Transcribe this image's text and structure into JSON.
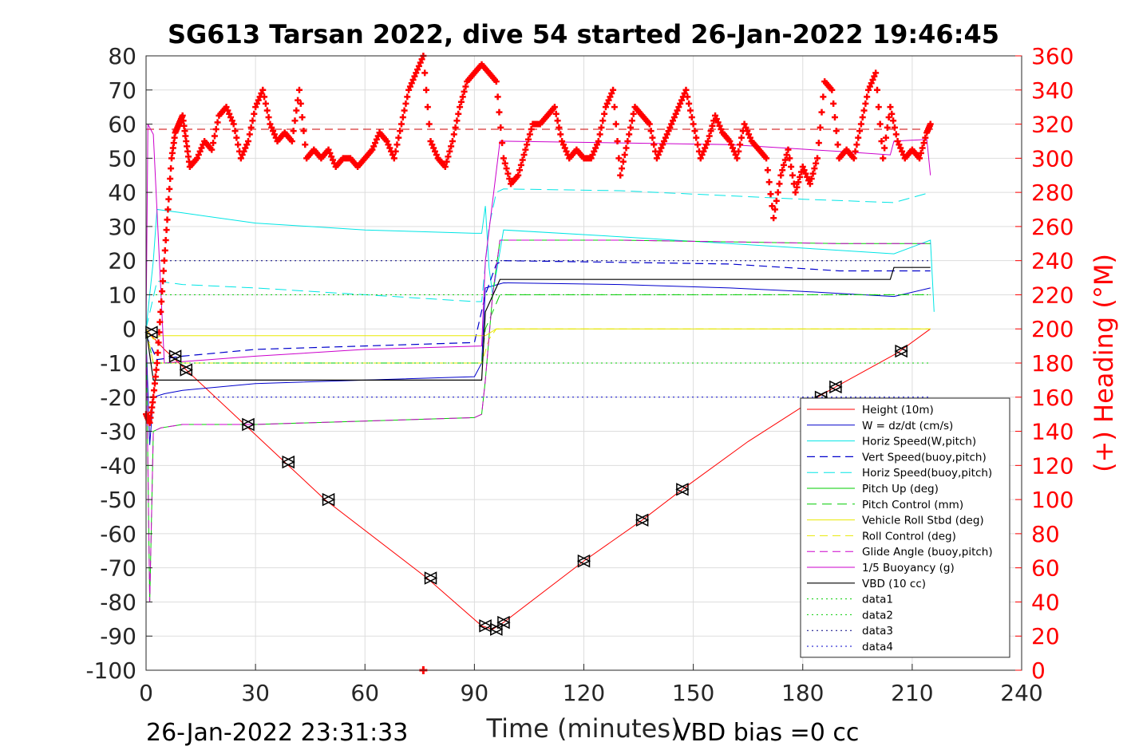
{
  "chart_data": {
    "type": "line",
    "title": "SG613 Tarsan 2022, dive 54 started 26-Jan-2022 19:46:45",
    "xlabel": "Time (minutes)",
    "ylabel_right": "(+) Heading (°M)",
    "footer_left": "26-Jan-2022 23:31:33",
    "footer_right": "VBD bias =0 cc",
    "xlim": [
      0,
      240
    ],
    "ylim": [
      -100,
      80
    ],
    "ylim_right": [
      0,
      360
    ],
    "xticks": [
      "0",
      "30",
      "60",
      "90",
      "120",
      "150",
      "180",
      "210",
      "240"
    ],
    "yticks": [
      "80",
      "70",
      "60",
      "50",
      "40",
      "30",
      "20",
      "10",
      "0",
      "-10",
      "-20",
      "-30",
      "-40",
      "-50",
      "-60",
      "-70",
      "-80",
      "-90",
      "-100"
    ],
    "yticks_right": [
      "360",
      "340",
      "320",
      "300",
      "280",
      "260",
      "240",
      "220",
      "200",
      "180",
      "160",
      "140",
      "120",
      "100",
      "80",
      "60",
      "40",
      "20",
      "0"
    ],
    "grid": true,
    "legend_position": "bottom-right",
    "colors": {
      "right_axis": "#ff0000",
      "axes": "#262626",
      "grid": "#dddddd"
    },
    "series": [
      {
        "name": "Height (10m)",
        "color": "#ff0000",
        "dash": "",
        "width": 1,
        "x": [
          0,
          1.5,
          5,
          10,
          27,
          38,
          49,
          77,
          92,
          95,
          98,
          120,
          136,
          147,
          165,
          184,
          189,
          206,
          215
        ],
        "y": [
          0,
          -2,
          -6,
          -11,
          -28,
          -39,
          -50,
          -73,
          -87,
          -88,
          -86,
          -68,
          -56,
          -47,
          -33,
          -20,
          -17,
          -7,
          0
        ]
      },
      {
        "name": "W = dz/dt (cm/s)",
        "color": "#0000cc",
        "dash": "",
        "width": 1,
        "x": [
          0,
          1,
          2,
          5,
          10,
          30,
          60,
          90,
          92,
          93,
          98,
          130,
          160,
          180,
          205,
          215
        ],
        "y": [
          -2,
          -34,
          -20,
          -19,
          -18,
          -16,
          -15,
          -14,
          -10,
          12,
          13.5,
          13,
          12,
          11,
          9.5,
          12
        ]
      },
      {
        "name": "Horiz Speed(W,pitch)",
        "color": "#00e5e5",
        "dash": "",
        "width": 1,
        "x": [
          0,
          2,
          3,
          10,
          30,
          60,
          90,
          92,
          93,
          94,
          95,
          98,
          130,
          160,
          190,
          205,
          215,
          216
        ],
        "y": [
          0,
          20,
          35,
          34,
          31,
          29,
          28,
          28,
          36,
          18,
          10,
          29,
          27,
          25,
          23,
          22,
          26,
          5
        ]
      },
      {
        "name": "Vert Speed(buoy,pitch)",
        "color": "#0000cc",
        "dash": "10,6",
        "width": 1.2,
        "x": [
          0,
          3,
          10,
          30,
          60,
          90,
          93,
          96,
          98,
          130,
          160,
          190,
          215
        ],
        "y": [
          -2,
          -9,
          -8,
          -6,
          -5,
          -4,
          10,
          19,
          20,
          19.5,
          19,
          17,
          17
        ]
      },
      {
        "name": "Horiz Speed(buoy,pitch)",
        "color": "#00e5e5",
        "dash": "14,7",
        "width": 1,
        "x": [
          0,
          3,
          10,
          30,
          60,
          90,
          92,
          94,
          96,
          98,
          130,
          160,
          180,
          205,
          215
        ],
        "y": [
          0,
          14,
          13,
          12,
          10,
          8,
          8,
          30,
          40,
          41,
          40.5,
          39,
          38,
          37,
          40
        ]
      },
      {
        "name": "Pitch Up (deg)",
        "color": "#00cc00",
        "dash": "",
        "width": 1,
        "x": [
          0,
          1,
          2,
          4,
          10,
          30,
          60,
          90,
          92,
          93,
          95,
          97,
          130,
          160,
          190,
          215
        ],
        "y": [
          0,
          -80,
          -30,
          -29,
          -28,
          -28,
          -27,
          -26,
          -25,
          -15,
          10,
          26,
          26,
          25.5,
          25,
          25
        ]
      },
      {
        "name": "Pitch Control (mm)",
        "color": "#00cc00",
        "dash": "12,7",
        "width": 1,
        "x": [
          0,
          2,
          4,
          92,
          93,
          97,
          215
        ],
        "y": [
          0,
          -10,
          -10,
          -10,
          0,
          10,
          10
        ]
      },
      {
        "name": "Vehicle Roll Stbd (deg)",
        "color": "#e8e800",
        "dash": "",
        "width": 1,
        "x": [
          0,
          2,
          4,
          10,
          30,
          60,
          92,
          93,
          96,
          100,
          130,
          160,
          190,
          215
        ],
        "y": [
          0,
          -3,
          -2,
          -2,
          -2,
          -2,
          -2,
          -2,
          0,
          0,
          0,
          0,
          0,
          0
        ]
      },
      {
        "name": "Roll Control (deg)",
        "color": "#e8e800",
        "dash": "10,6",
        "width": 1,
        "x": [
          0,
          2,
          4,
          92,
          94,
          96,
          215
        ],
        "y": [
          0,
          -10,
          -10,
          -10,
          -3,
          0,
          0
        ]
      },
      {
        "name": "Glide Angle (buoy,pitch)",
        "color": "#cc00cc",
        "dash": "10,6",
        "width": 1,
        "x": [
          0,
          1,
          2,
          4,
          10,
          30,
          60,
          90,
          92,
          93,
          95,
          97,
          130,
          160,
          190,
          215
        ],
        "y": [
          0,
          -80,
          -30,
          -29,
          -28,
          -28,
          -27,
          -26,
          -25,
          -15,
          10,
          26,
          26,
          25.5,
          25,
          25
        ]
      },
      {
        "name": "1/5 Buoyancy (g)",
        "color": "#cc00cc",
        "dash": "",
        "width": 1,
        "x": [
          0,
          0.5,
          2,
          5,
          30,
          60,
          92,
          93,
          97,
          130,
          160,
          190,
          204,
          205,
          214,
          215
        ],
        "y": [
          0,
          60,
          57,
          -10,
          -8,
          -6,
          -5,
          20,
          55,
          54.5,
          54,
          52,
          51,
          55,
          55.5,
          45
        ]
      },
      {
        "name": "VBD (10 cc)",
        "color": "#000000",
        "dash": "",
        "width": 1.2,
        "x": [
          0,
          2,
          4,
          10,
          30,
          60,
          92,
          93,
          97,
          130,
          160,
          190,
          204,
          205,
          215
        ],
        "y": [
          0,
          -15,
          -15,
          -15,
          -15,
          -15,
          -15,
          5,
          14.5,
          14.5,
          14.5,
          14.5,
          14.5,
          18,
          18
        ]
      },
      {
        "name": "data1",
        "color": "#00cc00",
        "dash": "2,4",
        "width": 1,
        "x": [
          0,
          215
        ],
        "y": [
          -10,
          -10
        ]
      },
      {
        "name": "data2",
        "color": "#00cc00",
        "dash": "2,4",
        "width": 1,
        "x": [
          0,
          215
        ],
        "y": [
          10,
          10
        ]
      },
      {
        "name": "data3",
        "color": "#000080",
        "dash": "2,4",
        "width": 1,
        "x": [
          0,
          215
        ],
        "y": [
          20,
          20
        ]
      },
      {
        "name": "data4",
        "color": "#0000cc",
        "dash": "2,4",
        "width": 1,
        "x": [
          0,
          215
        ],
        "y": [
          -20,
          -20
        ]
      }
    ],
    "heading": {
      "name": "(+) Heading (°M)",
      "color": "#ff0000",
      "marker": "+",
      "axis": "right",
      "x": [
        0,
        1,
        2,
        3,
        4,
        5,
        6,
        7,
        8,
        9,
        10,
        11,
        12,
        14,
        16,
        18,
        20,
        22,
        24,
        26,
        28,
        30,
        32,
        34,
        36,
        38,
        40,
        42,
        44,
        46,
        48,
        50,
        52,
        54,
        56,
        58,
        60,
        62,
        64,
        66,
        68,
        70,
        72,
        74,
        76,
        78,
        80,
        82,
        84,
        86,
        88,
        90,
        92,
        94,
        96,
        98,
        100,
        102,
        104,
        106,
        108,
        110,
        112,
        114,
        116,
        118,
        120,
        122,
        124,
        126,
        128,
        130,
        132,
        134,
        136,
        138,
        140,
        142,
        144,
        146,
        148,
        150,
        152,
        154,
        156,
        158,
        160,
        162,
        164,
        166,
        168,
        170,
        172,
        174,
        176,
        178,
        180,
        182,
        184,
        186,
        188,
        190,
        192,
        194,
        196,
        198,
        200,
        202,
        204,
        206,
        208,
        210,
        212,
        214,
        215
      ],
      "y": [
        150,
        145,
        160,
        180,
        210,
        240,
        270,
        300,
        315,
        320,
        325,
        310,
        295,
        300,
        310,
        305,
        325,
        330,
        320,
        300,
        310,
        330,
        340,
        320,
        310,
        315,
        310,
        340,
        300,
        305,
        300,
        305,
        295,
        300,
        300,
        295,
        300,
        305,
        315,
        310,
        300,
        320,
        340,
        350,
        360,
        310,
        300,
        295,
        310,
        330,
        345,
        350,
        355,
        350,
        345,
        300,
        285,
        290,
        305,
        320,
        320,
        325,
        330,
        310,
        300,
        305,
        300,
        300,
        310,
        330,
        340,
        290,
        310,
        330,
        325,
        320,
        300,
        310,
        320,
        330,
        340,
        320,
        300,
        310,
        325,
        315,
        310,
        300,
        320,
        310,
        305,
        300,
        265,
        290,
        305,
        280,
        295,
        285,
        300,
        345,
        340,
        300,
        305,
        300,
        320,
        340,
        350,
        300,
        330,
        310,
        300,
        305,
        300,
        315,
        320
      ]
    },
    "reference_lines": [
      {
        "axis": "right",
        "value": 317,
        "color": "#cc0000",
        "dash": "10,6"
      }
    ],
    "markers": {
      "x": [
        1.5,
        8,
        11,
        28,
        39,
        50,
        78,
        93,
        96,
        98,
        120,
        136,
        147,
        185,
        189,
        207
      ],
      "y": [
        -1,
        -8,
        -12,
        -28,
        -39,
        -50,
        -73,
        -87,
        -88,
        -86,
        -68,
        -56,
        -47,
        -20,
        -17,
        -6.5
      ]
    },
    "heading_extra_points": {
      "x": [
        76
      ],
      "y": [
        0
      ]
    }
  }
}
